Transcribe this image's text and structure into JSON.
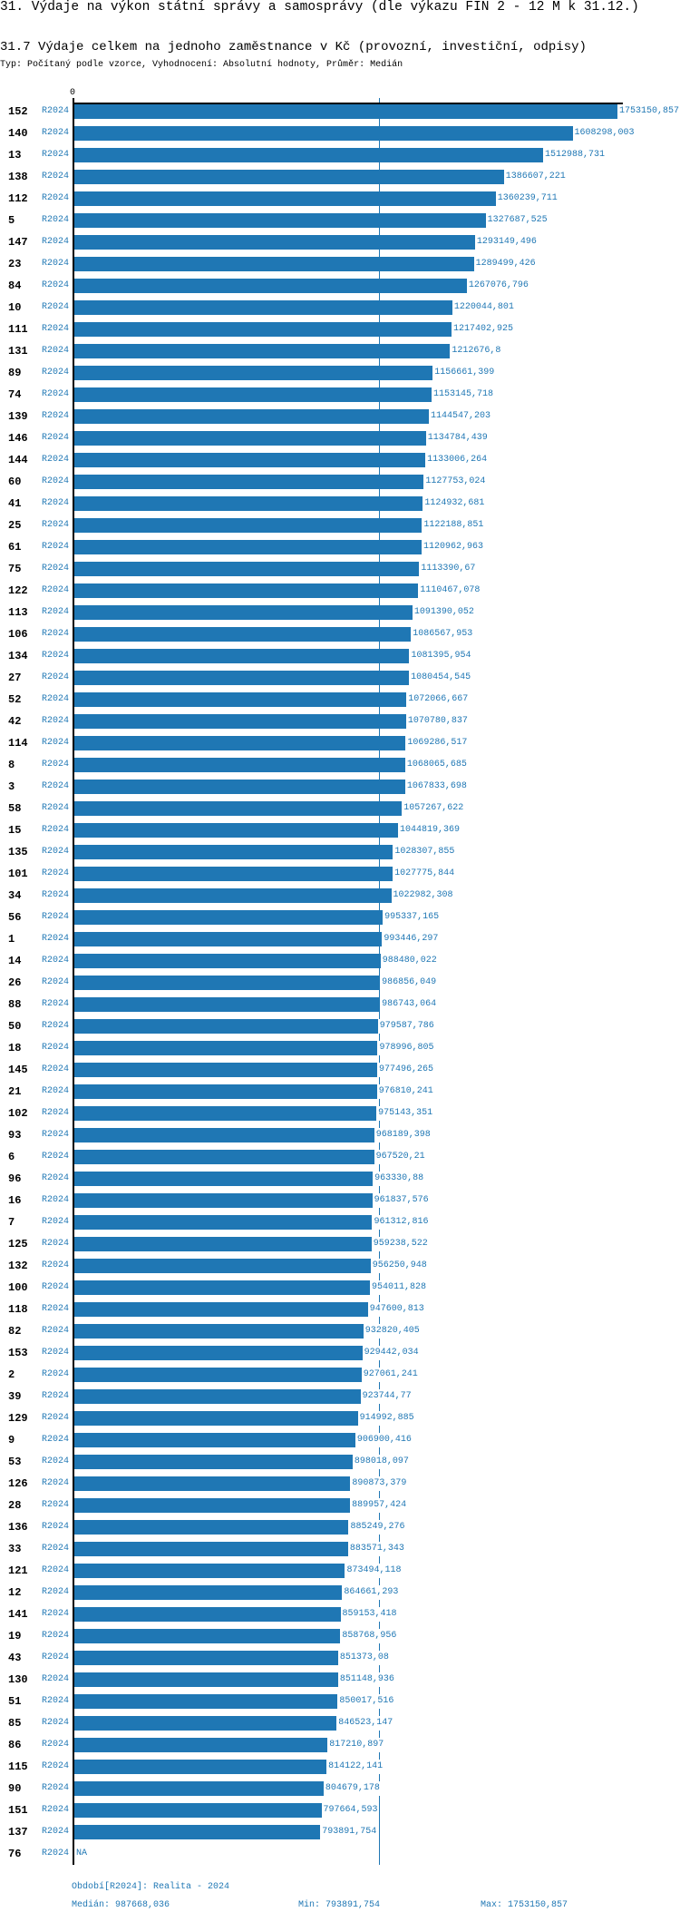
{
  "header": {
    "title": "31. Výdaje na výkon státní správy a samosprávy (dle výkazu FIN 2 - 12 M k 31.12.)",
    "subtitle": "31.7 Výdaje celkem na jednoho zaměstnance v Kč (provozní, investiční, odpisy)",
    "type_line": "Typ: Počítaný podle vzorce, Vyhodnocení: Absolutní hodnoty, Průměr: Medián"
  },
  "footer": {
    "period": "Období[R2024]: Realita - 2024",
    "median": "Medián: 987668,036",
    "min": "Min: 793891,754",
    "max": "Max: 1753150,857"
  },
  "chart_data": {
    "type": "bar",
    "orientation": "horizontal",
    "x_tick_labels": [
      "0"
    ],
    "xlim": [
      0,
      1753150.857
    ],
    "median": 987668.036,
    "grid": false,
    "bar_color": "#1f77b4",
    "label_color": "#1f77b4",
    "rows": [
      {
        "id": "152",
        "period": "R2024",
        "value": 1753150.857,
        "label": "1753150,857"
      },
      {
        "id": "140",
        "period": "R2024",
        "value": 1608298.003,
        "label": "1608298,003"
      },
      {
        "id": "13",
        "period": "R2024",
        "value": 1512988.731,
        "label": "1512988,731"
      },
      {
        "id": "138",
        "period": "R2024",
        "value": 1386607.221,
        "label": "1386607,221"
      },
      {
        "id": "112",
        "period": "R2024",
        "value": 1360239.711,
        "label": "1360239,711"
      },
      {
        "id": "5",
        "period": "R2024",
        "value": 1327687.525,
        "label": "1327687,525"
      },
      {
        "id": "147",
        "period": "R2024",
        "value": 1293149.496,
        "label": "1293149,496"
      },
      {
        "id": "23",
        "period": "R2024",
        "value": 1289499.426,
        "label": "1289499,426"
      },
      {
        "id": "84",
        "period": "R2024",
        "value": 1267076.796,
        "label": "1267076,796"
      },
      {
        "id": "10",
        "period": "R2024",
        "value": 1220044.801,
        "label": "1220044,801"
      },
      {
        "id": "111",
        "period": "R2024",
        "value": 1217402.925,
        "label": "1217402,925"
      },
      {
        "id": "131",
        "period": "R2024",
        "value": 1212676.8,
        "label": "1212676,8"
      },
      {
        "id": "89",
        "period": "R2024",
        "value": 1156661.399,
        "label": "1156661,399"
      },
      {
        "id": "74",
        "period": "R2024",
        "value": 1153145.718,
        "label": "1153145,718"
      },
      {
        "id": "139",
        "period": "R2024",
        "value": 1144547.203,
        "label": "1144547,203"
      },
      {
        "id": "146",
        "period": "R2024",
        "value": 1134784.439,
        "label": "1134784,439"
      },
      {
        "id": "144",
        "period": "R2024",
        "value": 1133006.264,
        "label": "1133006,264"
      },
      {
        "id": "60",
        "period": "R2024",
        "value": 1127753.024,
        "label": "1127753,024"
      },
      {
        "id": "41",
        "period": "R2024",
        "value": 1124932.681,
        "label": "1124932,681"
      },
      {
        "id": "25",
        "period": "R2024",
        "value": 1122188.851,
        "label": "1122188,851"
      },
      {
        "id": "61",
        "period": "R2024",
        "value": 1120962.963,
        "label": "1120962,963"
      },
      {
        "id": "75",
        "period": "R2024",
        "value": 1113390.67,
        "label": "1113390,67"
      },
      {
        "id": "122",
        "period": "R2024",
        "value": 1110467.078,
        "label": "1110467,078"
      },
      {
        "id": "113",
        "period": "R2024",
        "value": 1091390.052,
        "label": "1091390,052"
      },
      {
        "id": "106",
        "period": "R2024",
        "value": 1086567.953,
        "label": "1086567,953"
      },
      {
        "id": "134",
        "period": "R2024",
        "value": 1081395.954,
        "label": "1081395,954"
      },
      {
        "id": "27",
        "period": "R2024",
        "value": 1080454.545,
        "label": "1080454,545"
      },
      {
        "id": "52",
        "period": "R2024",
        "value": 1072066.667,
        "label": "1072066,667"
      },
      {
        "id": "42",
        "period": "R2024",
        "value": 1070780.837,
        "label": "1070780,837"
      },
      {
        "id": "114",
        "period": "R2024",
        "value": 1069286.517,
        "label": "1069286,517"
      },
      {
        "id": "8",
        "period": "R2024",
        "value": 1068065.685,
        "label": "1068065,685"
      },
      {
        "id": "3",
        "period": "R2024",
        "value": 1067833.698,
        "label": "1067833,698"
      },
      {
        "id": "58",
        "period": "R2024",
        "value": 1057267.622,
        "label": "1057267,622"
      },
      {
        "id": "15",
        "period": "R2024",
        "value": 1044819.369,
        "label": "1044819,369"
      },
      {
        "id": "135",
        "period": "R2024",
        "value": 1028307.855,
        "label": "1028307,855"
      },
      {
        "id": "101",
        "period": "R2024",
        "value": 1027775.844,
        "label": "1027775,844"
      },
      {
        "id": "34",
        "period": "R2024",
        "value": 1022982.308,
        "label": "1022982,308"
      },
      {
        "id": "56",
        "period": "R2024",
        "value": 995337.165,
        "label": "995337,165"
      },
      {
        "id": "1",
        "period": "R2024",
        "value": 993446.297,
        "label": "993446,297"
      },
      {
        "id": "14",
        "period": "R2024",
        "value": 988480.022,
        "label": "988480,022"
      },
      {
        "id": "26",
        "period": "R2024",
        "value": 986856.049,
        "label": "986856,049"
      },
      {
        "id": "88",
        "period": "R2024",
        "value": 986743.064,
        "label": "986743,064"
      },
      {
        "id": "50",
        "period": "R2024",
        "value": 979587.786,
        "label": "979587,786"
      },
      {
        "id": "18",
        "period": "R2024",
        "value": 978996.805,
        "label": "978996,805"
      },
      {
        "id": "145",
        "period": "R2024",
        "value": 977496.265,
        "label": "977496,265"
      },
      {
        "id": "21",
        "period": "R2024",
        "value": 976810.241,
        "label": "976810,241"
      },
      {
        "id": "102",
        "period": "R2024",
        "value": 975143.351,
        "label": "975143,351"
      },
      {
        "id": "93",
        "period": "R2024",
        "value": 968189.398,
        "label": "968189,398"
      },
      {
        "id": "6",
        "period": "R2024",
        "value": 967520.21,
        "label": "967520,21"
      },
      {
        "id": "96",
        "period": "R2024",
        "value": 963330.88,
        "label": "963330,88"
      },
      {
        "id": "16",
        "period": "R2024",
        "value": 961837.576,
        "label": "961837,576"
      },
      {
        "id": "7",
        "period": "R2024",
        "value": 961312.816,
        "label": "961312,816"
      },
      {
        "id": "125",
        "period": "R2024",
        "value": 959238.522,
        "label": "959238,522"
      },
      {
        "id": "132",
        "period": "R2024",
        "value": 956250.948,
        "label": "956250,948"
      },
      {
        "id": "100",
        "period": "R2024",
        "value": 954011.828,
        "label": "954011,828"
      },
      {
        "id": "118",
        "period": "R2024",
        "value": 947600.813,
        "label": "947600,813"
      },
      {
        "id": "82",
        "period": "R2024",
        "value": 932820.405,
        "label": "932820,405"
      },
      {
        "id": "153",
        "period": "R2024",
        "value": 929442.034,
        "label": "929442,034"
      },
      {
        "id": "2",
        "period": "R2024",
        "value": 927061.241,
        "label": "927061,241"
      },
      {
        "id": "39",
        "period": "R2024",
        "value": 923744.77,
        "label": "923744,77"
      },
      {
        "id": "129",
        "period": "R2024",
        "value": 914992.885,
        "label": "914992,885"
      },
      {
        "id": "9",
        "period": "R2024",
        "value": 906900.416,
        "label": "906900,416"
      },
      {
        "id": "53",
        "period": "R2024",
        "value": 898018.097,
        "label": "898018,097"
      },
      {
        "id": "126",
        "period": "R2024",
        "value": 890873.379,
        "label": "890873,379"
      },
      {
        "id": "28",
        "period": "R2024",
        "value": 889957.424,
        "label": "889957,424"
      },
      {
        "id": "136",
        "period": "R2024",
        "value": 885249.276,
        "label": "885249,276"
      },
      {
        "id": "33",
        "period": "R2024",
        "value": 883571.343,
        "label": "883571,343"
      },
      {
        "id": "121",
        "period": "R2024",
        "value": 873494.118,
        "label": "873494,118"
      },
      {
        "id": "12",
        "period": "R2024",
        "value": 864661.293,
        "label": "864661,293"
      },
      {
        "id": "141",
        "period": "R2024",
        "value": 859153.418,
        "label": "859153,418"
      },
      {
        "id": "19",
        "period": "R2024",
        "value": 858768.956,
        "label": "858768,956"
      },
      {
        "id": "43",
        "period": "R2024",
        "value": 851373.08,
        "label": "851373,08"
      },
      {
        "id": "130",
        "period": "R2024",
        "value": 851148.936,
        "label": "851148,936"
      },
      {
        "id": "51",
        "period": "R2024",
        "value": 850017.516,
        "label": "850017,516"
      },
      {
        "id": "85",
        "period": "R2024",
        "value": 846523.147,
        "label": "846523,147"
      },
      {
        "id": "86",
        "period": "R2024",
        "value": 817210.897,
        "label": "817210,897"
      },
      {
        "id": "115",
        "period": "R2024",
        "value": 814122.141,
        "label": "814122,141"
      },
      {
        "id": "90",
        "period": "R2024",
        "value": 804679.178,
        "label": "804679,178"
      },
      {
        "id": "151",
        "period": "R2024",
        "value": 797664.593,
        "label": "797664,593"
      },
      {
        "id": "137",
        "period": "R2024",
        "value": 793891.754,
        "label": "793891,754"
      },
      {
        "id": "76",
        "period": "R2024",
        "value": null,
        "label": "NA"
      }
    ]
  }
}
